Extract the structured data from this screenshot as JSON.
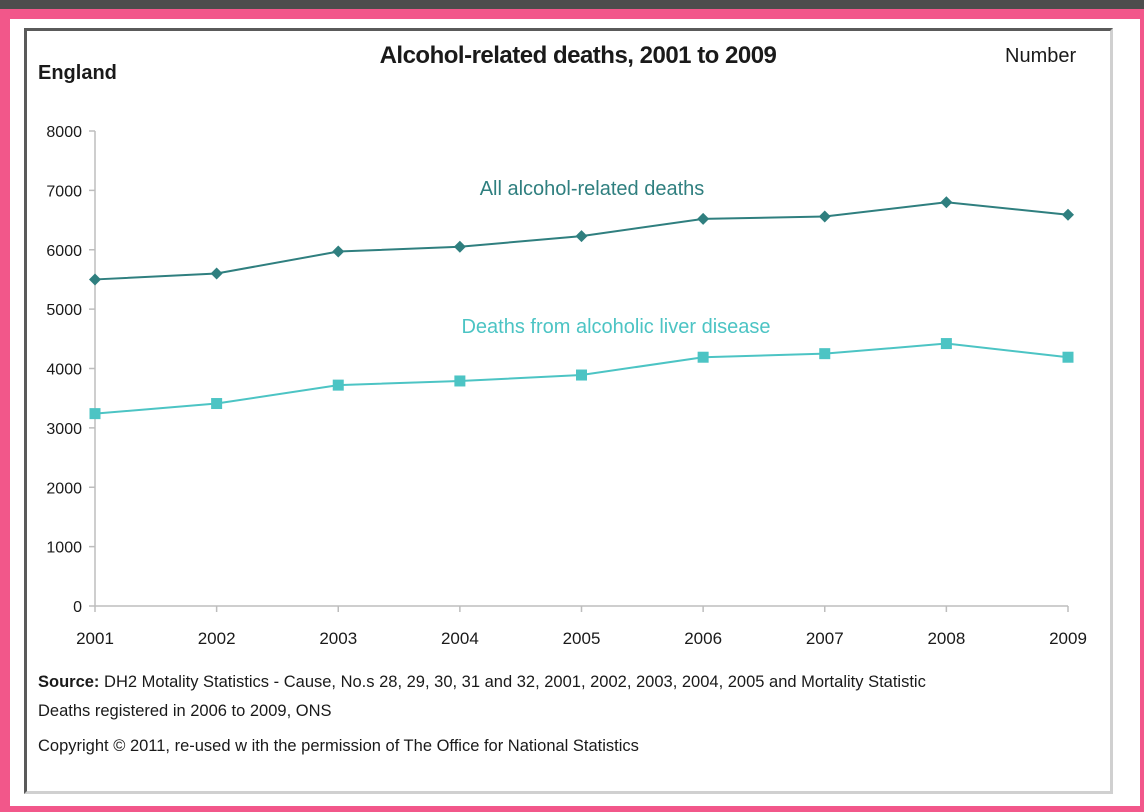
{
  "header": {
    "title": "Alcohol-related deaths, 2001 to 2009",
    "region": "England",
    "unit": "Number"
  },
  "footer": {
    "source_label": "Source:",
    "source_line1": " DH2 Motality Statistics - Cause, No.s 28, 29, 30, 31 and 32, 2001, 2002, 2003, 2004, 2005 and Mortality Statistic",
    "source_line2": "Deaths registered in 2006 to 2009, ONS",
    "copyright": "Copyright © 2011, re-used w ith the permission of The Office for National Statistics"
  },
  "colors": {
    "series_all": "#2f7f7f",
    "series_liver": "#4cc4c4",
    "axis": "#bdbdbd",
    "text": "#1a1a1a"
  },
  "chart_data": {
    "type": "line",
    "title": "Alcohol-related deaths, 2001 to 2009",
    "xlabel": "",
    "ylabel": "",
    "x": [
      "2001",
      "2002",
      "2003",
      "2004",
      "2005",
      "2006",
      "2007",
      "2008",
      "2009"
    ],
    "ylim": [
      0,
      8000
    ],
    "yticks": [
      "0",
      "1000",
      "2000",
      "3000",
      "4000",
      "5000",
      "6000",
      "7000",
      "8000"
    ],
    "grid": false,
    "series": [
      {
        "name": "All alcohol-related deaths",
        "marker": "diamond",
        "values": [
          5500,
          5600,
          5970,
          6050,
          6230,
          6520,
          6560,
          6800,
          6590
        ]
      },
      {
        "name": "Deaths from alcoholic liver disease",
        "marker": "square",
        "values": [
          3240,
          3410,
          3720,
          3790,
          3890,
          4190,
          4250,
          4420,
          4190
        ]
      }
    ]
  }
}
